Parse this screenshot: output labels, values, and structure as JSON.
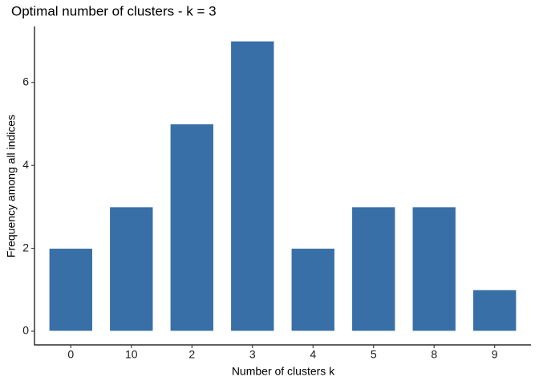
{
  "chart_data": {
    "type": "bar",
    "title": "Optimal number of clusters - k = 3",
    "x_label": "Number of clusters k",
    "y_label": "Frequency among all indices",
    "categories": [
      "0",
      "10",
      "2",
      "3",
      "4",
      "5",
      "8",
      "9"
    ],
    "values": [
      2,
      3,
      5,
      7,
      2,
      3,
      3,
      1
    ],
    "color": "#386fa6",
    "ylim": [
      -0.33,
      7.35
    ],
    "yticks": [
      0,
      2,
      4,
      6
    ],
    "grid": false
  }
}
